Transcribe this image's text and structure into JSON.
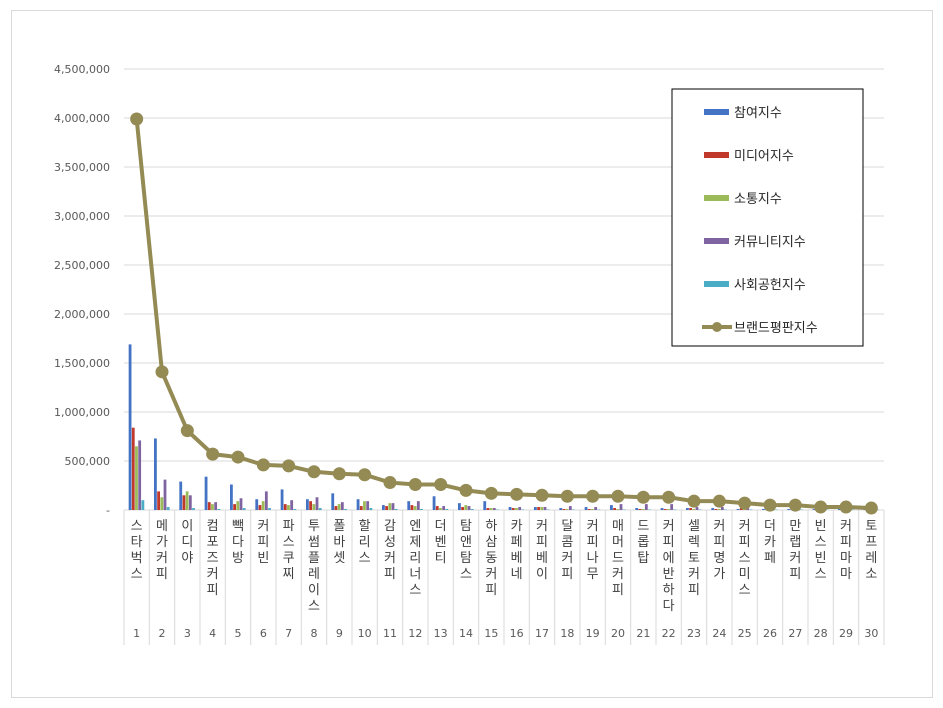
{
  "chart_data": {
    "type": "bar",
    "title": "",
    "xlabel": "",
    "ylabel": "",
    "ylim": [
      0,
      4500000
    ],
    "yticks": [
      0,
      500000,
      1000000,
      1500000,
      2000000,
      2500000,
      3000000,
      3500000,
      4000000,
      4500000
    ],
    "ytick_labels": [
      "-",
      "500,000",
      "1,000,000",
      "1,500,000",
      "2,000,000",
      "2,500,000",
      "3,000,000",
      "3,500,000",
      "4,000,000",
      "4,500,000"
    ],
    "grid": true,
    "legend_position": "top-right",
    "categories": [
      "스타벅스",
      "메가커피",
      "이디야",
      "컴포즈커피",
      "빽다방",
      "커피빈",
      "파스쿠찌",
      "투썸플레이스",
      "폴바셋",
      "할리스",
      "감성커피",
      "엔제리너스",
      "더벤티",
      "탐앤탐스",
      "하삼동커피",
      "카페베네",
      "커피베이",
      "달콤커피",
      "커피나무",
      "매머드커피",
      "드롭탑",
      "커피에반하다",
      "셀렉토커피",
      "커피명가",
      "커피스미스",
      "더카페",
      "만랩커피",
      "빈스빈스",
      "커피마마",
      "토프레소"
    ],
    "ranks": [
      "1",
      "2",
      "3",
      "4",
      "5",
      "6",
      "7",
      "8",
      "9",
      "10",
      "11",
      "12",
      "13",
      "14",
      "15",
      "16",
      "17",
      "18",
      "19",
      "20",
      "21",
      "22",
      "23",
      "24",
      "25",
      "26",
      "27",
      "28",
      "29",
      "30"
    ],
    "series": [
      {
        "name": "참여지수",
        "kind": "bar",
        "color": "#4472c4",
        "values": [
          1690000,
          730000,
          290000,
          340000,
          260000,
          110000,
          210000,
          110000,
          170000,
          110000,
          50000,
          90000,
          140000,
          70000,
          90000,
          30000,
          30000,
          20000,
          30000,
          50000,
          20000,
          20000,
          20000,
          20000,
          10000,
          10000,
          10000,
          10000,
          10000,
          10000
        ]
      },
      {
        "name": "미디어지수",
        "kind": "bar",
        "color": "#c0392b",
        "values": [
          840000,
          190000,
          150000,
          80000,
          60000,
          50000,
          60000,
          90000,
          40000,
          40000,
          40000,
          50000,
          40000,
          30000,
          20000,
          20000,
          30000,
          10000,
          10000,
          20000,
          10000,
          10000,
          20000,
          10000,
          20000,
          10000,
          10000,
          10000,
          10000,
          10000
        ]
      },
      {
        "name": "소통지수",
        "kind": "bar",
        "color": "#9bbb59",
        "values": [
          650000,
          130000,
          190000,
          60000,
          90000,
          90000,
          50000,
          60000,
          60000,
          90000,
          70000,
          40000,
          20000,
          50000,
          20000,
          20000,
          30000,
          10000,
          10000,
          10000,
          10000,
          10000,
          10000,
          10000,
          10000,
          10000,
          10000,
          10000,
          10000,
          10000
        ]
      },
      {
        "name": "커뮤니티지수",
        "kind": "bar",
        "color": "#8064a2",
        "values": [
          710000,
          310000,
          150000,
          80000,
          120000,
          190000,
          100000,
          130000,
          80000,
          90000,
          70000,
          90000,
          40000,
          40000,
          20000,
          30000,
          30000,
          40000,
          30000,
          60000,
          60000,
          60000,
          30000,
          30000,
          20000,
          10000,
          10000,
          10000,
          10000,
          10000
        ]
      },
      {
        "name": "사회공헌지수",
        "kind": "bar",
        "color": "#4bacc6",
        "values": [
          100000,
          30000,
          20000,
          10000,
          20000,
          20000,
          10000,
          20000,
          10000,
          20000,
          10000,
          10000,
          10000,
          10000,
          5000,
          5000,
          5000,
          5000,
          5000,
          5000,
          5000,
          5000,
          5000,
          5000,
          5000,
          5000,
          5000,
          5000,
          5000,
          5000
        ]
      },
      {
        "name": "브랜드평판지수",
        "kind": "line",
        "color": "#948a54",
        "values": [
          3990000,
          1410000,
          810000,
          570000,
          540000,
          460000,
          450000,
          390000,
          370000,
          360000,
          280000,
          260000,
          260000,
          200000,
          170000,
          160000,
          150000,
          140000,
          140000,
          140000,
          130000,
          130000,
          90000,
          90000,
          70000,
          50000,
          50000,
          30000,
          30000,
          20000
        ]
      }
    ]
  }
}
